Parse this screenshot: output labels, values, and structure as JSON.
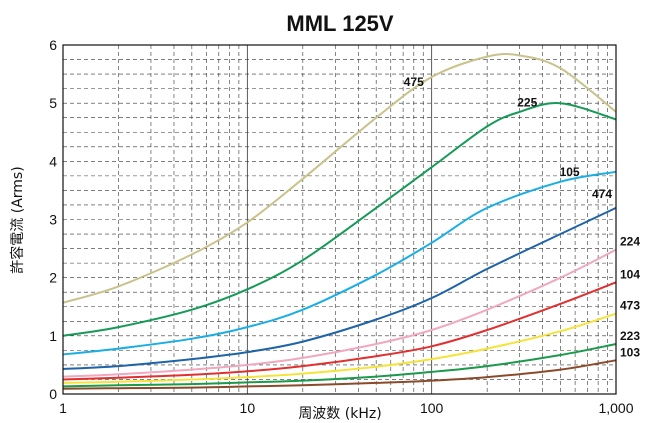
{
  "chart_data": {
    "type": "line",
    "title": "MML 125V",
    "xlabel": "周波数 (kHz)",
    "ylabel": "許容電流 (Arms)",
    "xscale": "log",
    "xlim": [
      1,
      1000
    ],
    "ylim": [
      0,
      6
    ],
    "x_ticks": [
      1,
      10,
      100,
      1000
    ],
    "x_tick_labels": [
      "1",
      "10",
      "100",
      "1,000"
    ],
    "y_ticks": [
      0,
      1,
      2,
      3,
      4,
      5,
      6
    ],
    "y_tick_labels": [
      "0",
      "1",
      "2",
      "3",
      "4",
      "5",
      "6"
    ],
    "grid": true,
    "series": [
      {
        "name": "475",
        "color": "#c8c38a",
        "x": [
          1,
          2,
          5,
          10,
          20,
          50,
          100,
          200,
          300,
          500,
          1000
        ],
        "values": [
          1.57,
          1.85,
          2.4,
          2.95,
          3.7,
          4.75,
          5.45,
          5.8,
          5.82,
          5.6,
          4.85
        ]
      },
      {
        "name": "225",
        "color": "#159a57",
        "x": [
          1,
          2,
          5,
          10,
          20,
          50,
          100,
          200,
          300,
          500,
          1000
        ],
        "values": [
          1.0,
          1.15,
          1.45,
          1.8,
          2.3,
          3.2,
          3.9,
          4.6,
          4.85,
          5.0,
          4.72
        ]
      },
      {
        "name": "105",
        "color": "#1aaee4",
        "x": [
          1,
          2,
          5,
          10,
          20,
          50,
          100,
          200,
          500,
          1000
        ],
        "values": [
          0.68,
          0.78,
          0.95,
          1.15,
          1.45,
          2.05,
          2.6,
          3.2,
          3.65,
          3.82
        ]
      },
      {
        "name": "474",
        "color": "#1f63a8",
        "x": [
          1,
          2,
          5,
          10,
          20,
          50,
          100,
          200,
          500,
          1000
        ],
        "values": [
          0.43,
          0.48,
          0.6,
          0.72,
          0.9,
          1.28,
          1.65,
          2.15,
          2.75,
          3.2
        ]
      },
      {
        "name": "224",
        "color": "#f0a8c0",
        "x": [
          1,
          2,
          5,
          10,
          20,
          50,
          100,
          200,
          500,
          1000
        ],
        "values": [
          0.3,
          0.34,
          0.42,
          0.5,
          0.62,
          0.86,
          1.1,
          1.45,
          2.0,
          2.48
        ]
      },
      {
        "name": "104",
        "color": "#e03030",
        "x": [
          1,
          2,
          5,
          10,
          20,
          50,
          100,
          200,
          500,
          1000
        ],
        "values": [
          0.25,
          0.28,
          0.33,
          0.39,
          0.48,
          0.65,
          0.82,
          1.1,
          1.55,
          1.92
        ]
      },
      {
        "name": "473",
        "color": "#f4e43a",
        "x": [
          1,
          2,
          5,
          10,
          20,
          50,
          100,
          200,
          500,
          1000
        ],
        "values": [
          0.19,
          0.21,
          0.25,
          0.29,
          0.35,
          0.47,
          0.6,
          0.78,
          1.08,
          1.38
        ]
      },
      {
        "name": "223",
        "color": "#1a9a4a",
        "x": [
          1,
          2,
          5,
          10,
          20,
          50,
          100,
          200,
          500,
          1000
        ],
        "values": [
          0.13,
          0.15,
          0.17,
          0.2,
          0.23,
          0.3,
          0.38,
          0.48,
          0.67,
          0.86
        ]
      },
      {
        "name": "103",
        "color": "#8b4a2a",
        "x": [
          1,
          2,
          5,
          10,
          20,
          50,
          100,
          200,
          500,
          1000
        ],
        "values": [
          0.09,
          0.1,
          0.11,
          0.13,
          0.15,
          0.19,
          0.23,
          0.29,
          0.42,
          0.58
        ]
      }
    ]
  }
}
